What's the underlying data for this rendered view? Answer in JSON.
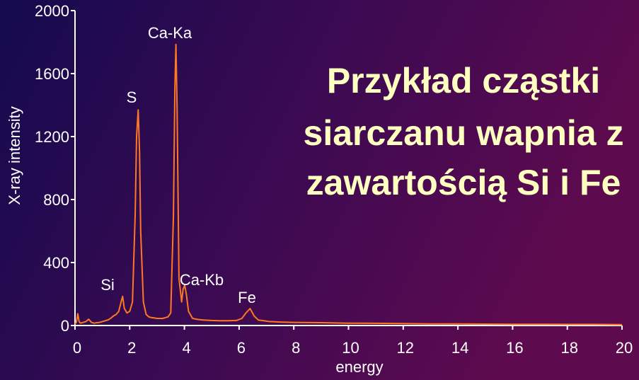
{
  "chart_data": {
    "type": "line",
    "title": [
      "Przykład cząstki",
      "siarczanu wapnia z",
      "zawartością Si i Fe"
    ],
    "xlabel": "energy",
    "ylabel": "X-ray intensity",
    "annotations": [
      "Si",
      "S",
      "Ca-Ka",
      "Ca-Kb",
      "Fe"
    ],
    "x": [
      0,
      0.05,
      0.1,
      0.15,
      0.2,
      0.3,
      0.4,
      0.5,
      0.6,
      0.7,
      0.8,
      0.9,
      1.0,
      1.1,
      1.2,
      1.3,
      1.4,
      1.5,
      1.6,
      1.7,
      1.74,
      1.8,
      1.9,
      2.0,
      2.1,
      2.2,
      2.25,
      2.31,
      2.36,
      2.4,
      2.5,
      2.6,
      2.7,
      2.8,
      2.9,
      3.0,
      3.1,
      3.2,
      3.3,
      3.4,
      3.5,
      3.6,
      3.65,
      3.69,
      3.73,
      3.8,
      3.9,
      3.95,
      4.01,
      4.07,
      4.15,
      4.3,
      4.5,
      4.7,
      5.0,
      5.3,
      5.6,
      5.9,
      6.1,
      6.25,
      6.4,
      6.55,
      6.7,
      6.9,
      7.1,
      7.5,
      8,
      9,
      10,
      11,
      12,
      13,
      14,
      15,
      16,
      17,
      18,
      19,
      20
    ],
    "series": [
      {
        "name": "X-ray intensity",
        "color": "#ff7722",
        "values": [
          10,
          20,
          75,
          25,
          15,
          20,
          25,
          40,
          20,
          15,
          18,
          20,
          25,
          30,
          35,
          45,
          60,
          70,
          90,
          160,
          185,
          110,
          80,
          90,
          150,
          700,
          1200,
          1370,
          1100,
          600,
          150,
          70,
          55,
          50,
          48,
          45,
          45,
          45,
          50,
          55,
          80,
          700,
          1500,
          1785,
          1400,
          300,
          150,
          230,
          256,
          200,
          90,
          45,
          38,
          35,
          32,
          30,
          30,
          32,
          45,
          80,
          108,
          60,
          35,
          30,
          25,
          22,
          20,
          18,
          15,
          14,
          12,
          10,
          10,
          9,
          8,
          8,
          7,
          7,
          6
        ]
      }
    ],
    "xlim": [
      0,
      20
    ],
    "xticks": [
      0,
      2,
      4,
      6,
      8,
      10,
      12,
      14,
      16,
      18,
      20
    ],
    "ylim": [
      0,
      2000
    ],
    "yticks": [
      0,
      400,
      800,
      1200,
      1600,
      2000
    ]
  }
}
